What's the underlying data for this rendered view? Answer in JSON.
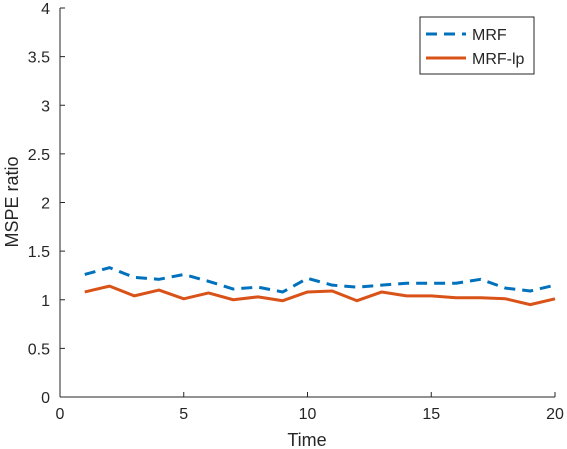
{
  "chart_data": {
    "type": "line",
    "xlabel": "Time",
    "ylabel": "MSPE ratio",
    "xlim": [
      0,
      20
    ],
    "ylim": [
      0,
      4
    ],
    "xticks": [
      0,
      5,
      10,
      15,
      20
    ],
    "yticks": [
      0,
      0.5,
      1,
      1.5,
      2,
      2.5,
      3,
      3.5,
      4
    ],
    "xtick_labels": [
      "0",
      "5",
      "10",
      "15",
      "20"
    ],
    "ytick_labels": [
      "0",
      "0.5",
      "1",
      "1.5",
      "2",
      "2.5",
      "3",
      "3.5",
      "4"
    ],
    "grid": false,
    "legend_position": "top-right",
    "x": [
      1,
      2,
      3,
      4,
      5,
      6,
      7,
      8,
      9,
      10,
      11,
      12,
      13,
      14,
      15,
      16,
      17,
      18,
      19,
      20
    ],
    "series": [
      {
        "name": "MRF",
        "style": "dashed",
        "color": "#0072BD",
        "values": [
          1.26,
          1.33,
          1.23,
          1.21,
          1.26,
          1.19,
          1.11,
          1.13,
          1.08,
          1.22,
          1.15,
          1.13,
          1.15,
          1.17,
          1.17,
          1.17,
          1.21,
          1.12,
          1.09,
          1.15
        ]
      },
      {
        "name": "MRF-lp",
        "style": "solid",
        "color": "#D95319",
        "values": [
          1.08,
          1.14,
          1.04,
          1.1,
          1.01,
          1.07,
          1.0,
          1.03,
          0.99,
          1.08,
          1.09,
          0.99,
          1.08,
          1.04,
          1.04,
          1.02,
          1.02,
          1.01,
          0.95,
          1.01
        ]
      }
    ]
  }
}
